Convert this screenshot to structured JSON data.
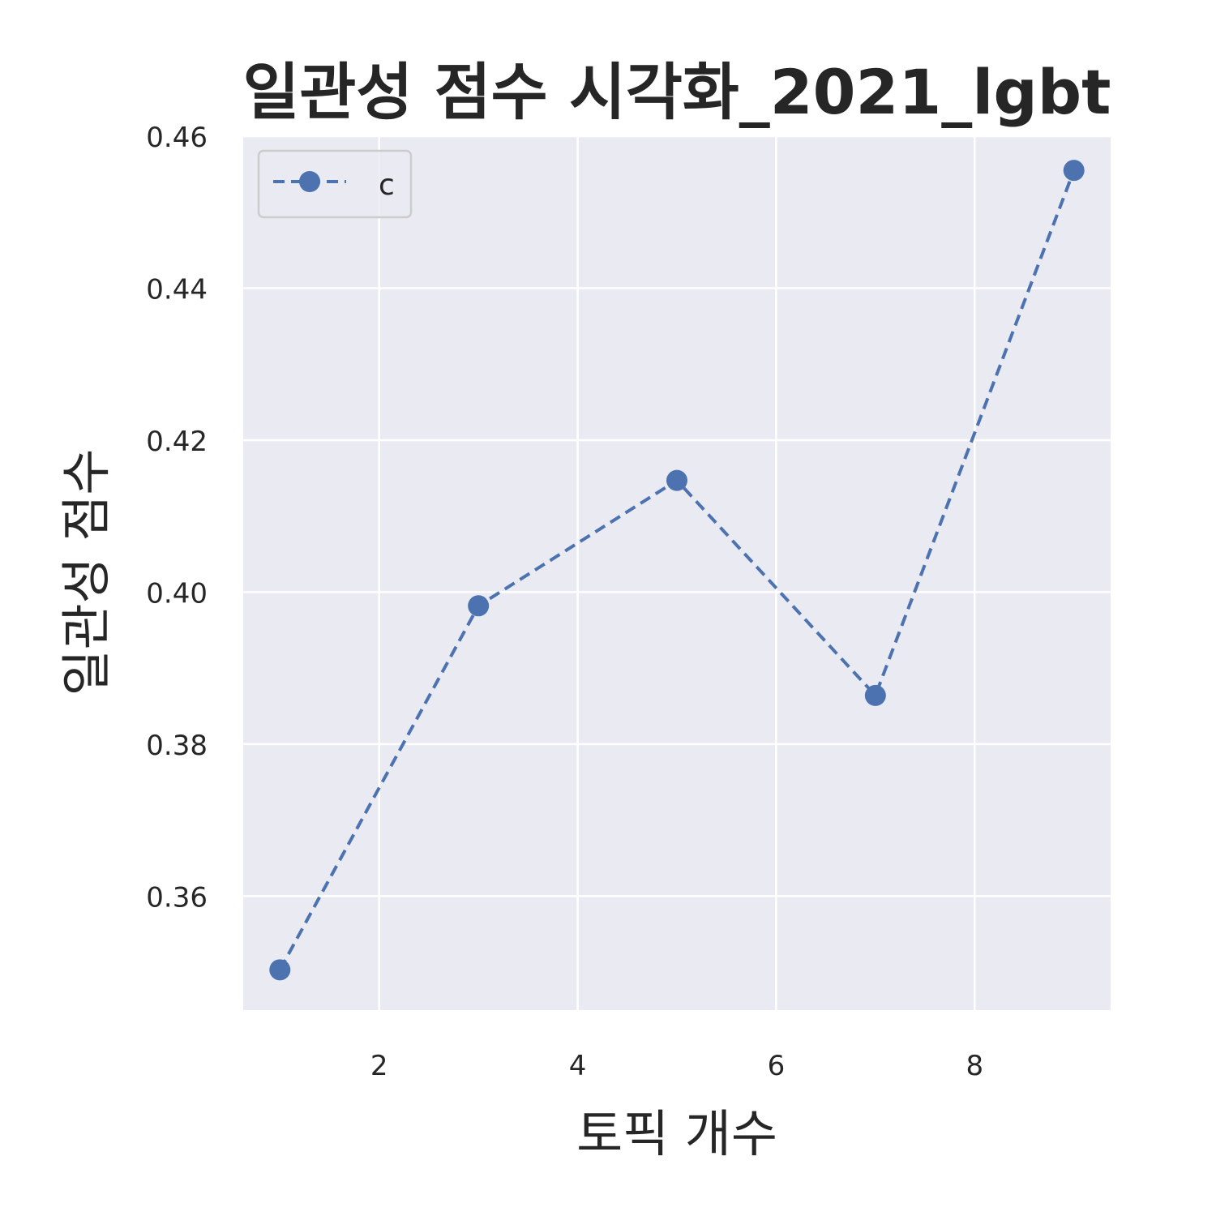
{
  "chart_data": {
    "type": "line",
    "title": "일관성 점수 시각화_2021_lgbt",
    "xlabel": "토픽 개수",
    "ylabel": "일관성 점수",
    "xlim": [
      0.63,
      9.37
    ],
    "ylim": [
      0.345,
      0.46
    ],
    "x_ticks": [
      2,
      4,
      6,
      8
    ],
    "y_ticks": [
      0.36,
      0.38,
      0.4,
      0.42,
      0.44,
      0.46
    ],
    "x_tick_labels": [
      "2",
      "4",
      "6",
      "8"
    ],
    "y_tick_labels": [
      "0.36",
      "0.38",
      "0.40",
      "0.42",
      "0.44",
      "0.46"
    ],
    "grid": true,
    "legend_position": "upper-left",
    "series": [
      {
        "name": "c",
        "color": "#4c72b0",
        "line_style": "dashed",
        "marker": "circle",
        "x": [
          1,
          3,
          5,
          7,
          9
        ],
        "y": [
          0.3503,
          0.3982,
          0.4147,
          0.3864,
          0.4555
        ]
      }
    ]
  },
  "colors": {
    "plot_background": "#eaeaf2",
    "grid": "#ffffff",
    "text": "#262626",
    "legend_border": "#cccccc"
  }
}
